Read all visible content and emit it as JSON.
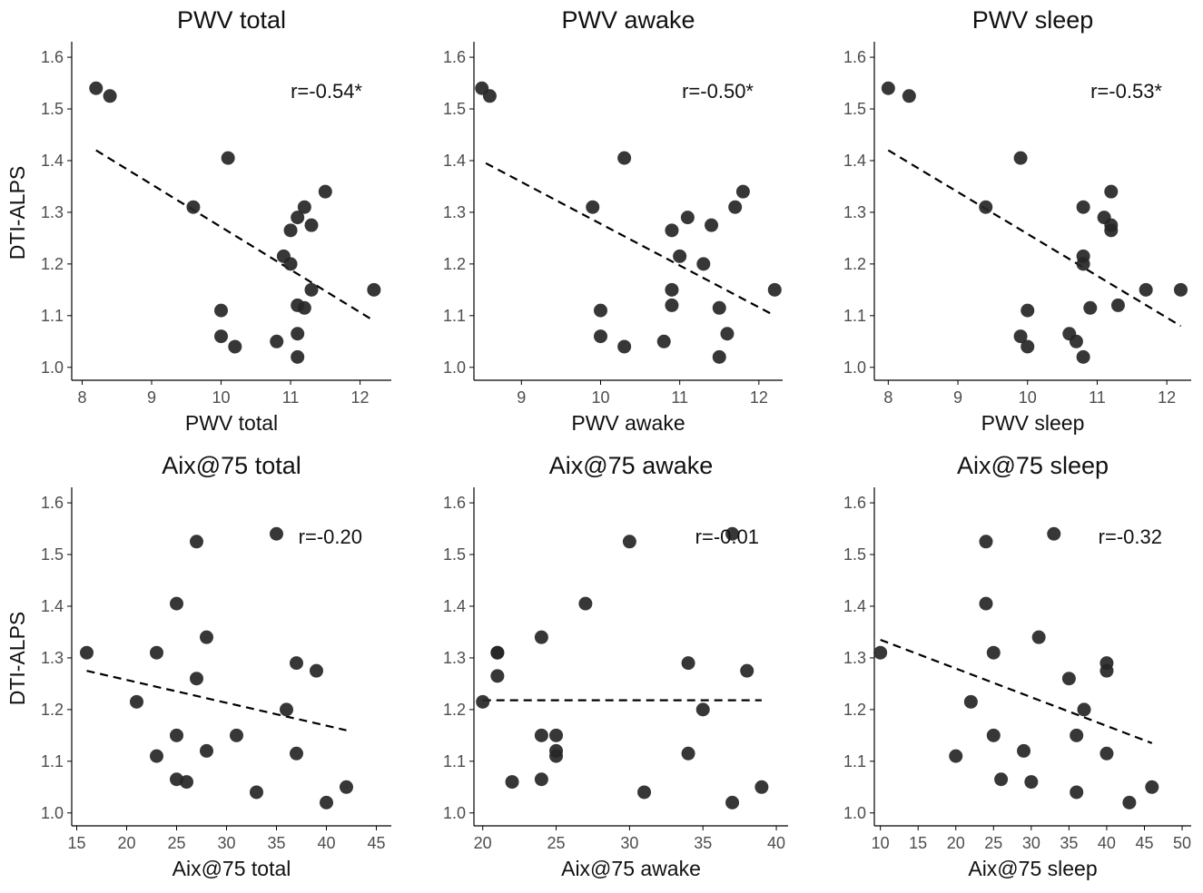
{
  "chart_data": [
    {
      "type": "scatter",
      "title": "PWV total",
      "xlabel": "PWV total",
      "ylabel": "DTI-ALPS",
      "xlim": [
        7.85,
        12.45
      ],
      "ylim": [
        0.975,
        1.63
      ],
      "xticks": [
        8,
        9,
        10,
        11,
        12
      ],
      "yticks": [
        1.0,
        1.1,
        1.2,
        1.3,
        1.4,
        1.5,
        1.6
      ],
      "ytick_labels": [
        "1.0",
        "1.1",
        "1.2",
        "1.3",
        "1.4",
        "1.5",
        "1.6"
      ],
      "annotation": "r=-0.54*",
      "fit_line": {
        "x": [
          8.2,
          12.2
        ],
        "y": [
          1.42,
          1.09
        ]
      },
      "points": [
        {
          "x": 8.2,
          "y": 1.54
        },
        {
          "x": 8.4,
          "y": 1.525
        },
        {
          "x": 10.1,
          "y": 1.405
        },
        {
          "x": 9.6,
          "y": 1.31
        },
        {
          "x": 11.5,
          "y": 1.34
        },
        {
          "x": 11.2,
          "y": 1.31
        },
        {
          "x": 11.1,
          "y": 1.29
        },
        {
          "x": 11.3,
          "y": 1.275
        },
        {
          "x": 11.0,
          "y": 1.265
        },
        {
          "x": 10.9,
          "y": 1.215
        },
        {
          "x": 11.0,
          "y": 1.2
        },
        {
          "x": 12.2,
          "y": 1.15
        },
        {
          "x": 11.3,
          "y": 1.15
        },
        {
          "x": 11.1,
          "y": 1.12
        },
        {
          "x": 11.2,
          "y": 1.115
        },
        {
          "x": 10.0,
          "y": 1.11
        },
        {
          "x": 10.0,
          "y": 1.06
        },
        {
          "x": 11.1,
          "y": 1.065
        },
        {
          "x": 10.8,
          "y": 1.05
        },
        {
          "x": 10.2,
          "y": 1.04
        },
        {
          "x": 11.1,
          "y": 1.02
        }
      ]
    },
    {
      "type": "scatter",
      "title": "PWV awake",
      "xlabel": "PWV awake",
      "ylabel": "",
      "xlim": [
        8.4,
        12.3
      ],
      "ylim": [
        0.975,
        1.63
      ],
      "xticks": [
        9,
        10,
        11,
        12
      ],
      "yticks": [
        1.0,
        1.1,
        1.2,
        1.3,
        1.4,
        1.5,
        1.6
      ],
      "ytick_labels": [
        "1.0",
        "1.1",
        "1.2",
        "1.3",
        "1.4",
        "1.5",
        "1.6"
      ],
      "annotation": "r=-0.50*",
      "fit_line": {
        "x": [
          8.55,
          12.2
        ],
        "y": [
          1.395,
          1.1
        ]
      },
      "points": [
        {
          "x": 8.5,
          "y": 1.54
        },
        {
          "x": 8.6,
          "y": 1.525
        },
        {
          "x": 10.3,
          "y": 1.405
        },
        {
          "x": 9.9,
          "y": 1.31
        },
        {
          "x": 11.8,
          "y": 1.34
        },
        {
          "x": 11.7,
          "y": 1.31
        },
        {
          "x": 11.1,
          "y": 1.29
        },
        {
          "x": 11.4,
          "y": 1.275
        },
        {
          "x": 10.9,
          "y": 1.265
        },
        {
          "x": 11.0,
          "y": 1.215
        },
        {
          "x": 11.3,
          "y": 1.2
        },
        {
          "x": 12.2,
          "y": 1.15
        },
        {
          "x": 10.9,
          "y": 1.15
        },
        {
          "x": 10.9,
          "y": 1.12
        },
        {
          "x": 11.5,
          "y": 1.115
        },
        {
          "x": 10.0,
          "y": 1.11
        },
        {
          "x": 10.0,
          "y": 1.06
        },
        {
          "x": 11.6,
          "y": 1.065
        },
        {
          "x": 10.8,
          "y": 1.05
        },
        {
          "x": 10.3,
          "y": 1.04
        },
        {
          "x": 11.5,
          "y": 1.02
        }
      ]
    },
    {
      "type": "scatter",
      "title": "PWV sleep",
      "xlabel": "PWV sleep",
      "ylabel": "",
      "xlim": [
        7.8,
        12.35
      ],
      "ylim": [
        0.975,
        1.63
      ],
      "xticks": [
        8,
        9,
        10,
        11,
        12
      ],
      "yticks": [
        1.0,
        1.1,
        1.2,
        1.3,
        1.4,
        1.5,
        1.6
      ],
      "ytick_labels": [
        "1.0",
        "1.1",
        "1.2",
        "1.3",
        "1.4",
        "1.5",
        "1.6"
      ],
      "annotation": "r=-0.53*",
      "fit_line": {
        "x": [
          8.0,
          12.2
        ],
        "y": [
          1.42,
          1.08
        ]
      },
      "points": [
        {
          "x": 8.0,
          "y": 1.54
        },
        {
          "x": 8.3,
          "y": 1.525
        },
        {
          "x": 9.9,
          "y": 1.405
        },
        {
          "x": 9.4,
          "y": 1.31
        },
        {
          "x": 11.2,
          "y": 1.34
        },
        {
          "x": 10.8,
          "y": 1.31
        },
        {
          "x": 11.1,
          "y": 1.29
        },
        {
          "x": 11.2,
          "y": 1.275
        },
        {
          "x": 11.2,
          "y": 1.265
        },
        {
          "x": 10.8,
          "y": 1.215
        },
        {
          "x": 10.8,
          "y": 1.2
        },
        {
          "x": 12.2,
          "y": 1.15
        },
        {
          "x": 11.7,
          "y": 1.15
        },
        {
          "x": 11.3,
          "y": 1.12
        },
        {
          "x": 10.9,
          "y": 1.115
        },
        {
          "x": 10.0,
          "y": 1.11
        },
        {
          "x": 9.9,
          "y": 1.06
        },
        {
          "x": 10.6,
          "y": 1.065
        },
        {
          "x": 10.7,
          "y": 1.05
        },
        {
          "x": 10.0,
          "y": 1.04
        },
        {
          "x": 10.8,
          "y": 1.02
        }
      ]
    },
    {
      "type": "scatter",
      "title": "Aix@75 total",
      "xlabel": "Aix@75 total",
      "ylabel": "DTI-ALPS",
      "xlim": [
        14.5,
        46.5
      ],
      "ylim": [
        0.975,
        1.63
      ],
      "xticks": [
        15,
        20,
        25,
        30,
        35,
        40,
        45
      ],
      "yticks": [
        1.0,
        1.1,
        1.2,
        1.3,
        1.4,
        1.5,
        1.6
      ],
      "ytick_labels": [
        "1.0",
        "1.1",
        "1.2",
        "1.3",
        "1.4",
        "1.5",
        "1.6"
      ],
      "annotation": "r=-0.20",
      "fit_line": {
        "x": [
          16,
          42
        ],
        "y": [
          1.275,
          1.16
        ]
      },
      "points": [
        {
          "x": 35,
          "y": 1.54
        },
        {
          "x": 27,
          "y": 1.525
        },
        {
          "x": 25,
          "y": 1.405
        },
        {
          "x": 16,
          "y": 1.31
        },
        {
          "x": 28,
          "y": 1.34
        },
        {
          "x": 23,
          "y": 1.31
        },
        {
          "x": 37,
          "y": 1.29
        },
        {
          "x": 39,
          "y": 1.275
        },
        {
          "x": 27,
          "y": 1.26
        },
        {
          "x": 21,
          "y": 1.215
        },
        {
          "x": 36,
          "y": 1.2
        },
        {
          "x": 25,
          "y": 1.15
        },
        {
          "x": 31,
          "y": 1.15
        },
        {
          "x": 28,
          "y": 1.12
        },
        {
          "x": 37,
          "y": 1.115
        },
        {
          "x": 23,
          "y": 1.11
        },
        {
          "x": 25,
          "y": 1.065
        },
        {
          "x": 26,
          "y": 1.06
        },
        {
          "x": 42,
          "y": 1.05
        },
        {
          "x": 33,
          "y": 1.04
        },
        {
          "x": 40,
          "y": 1.02
        }
      ]
    },
    {
      "type": "scatter",
      "title": "Aix@75 awake",
      "xlabel": "Aix@75 awake",
      "ylabel": "",
      "xlim": [
        19.4,
        40.8
      ],
      "ylim": [
        0.975,
        1.63
      ],
      "xticks": [
        20,
        25,
        30,
        35,
        40
      ],
      "yticks": [
        1.0,
        1.1,
        1.2,
        1.3,
        1.4,
        1.5,
        1.6
      ],
      "ytick_labels": [
        "1.0",
        "1.1",
        "1.2",
        "1.3",
        "1.4",
        "1.5",
        "1.6"
      ],
      "annotation": "r=-0.01",
      "fit_line": {
        "x": [
          20,
          39
        ],
        "y": [
          1.218,
          1.218
        ]
      },
      "points": [
        {
          "x": 37,
          "y": 1.54
        },
        {
          "x": 30,
          "y": 1.525
        },
        {
          "x": 27,
          "y": 1.405
        },
        {
          "x": 21,
          "y": 1.31
        },
        {
          "x": 24,
          "y": 1.34
        },
        {
          "x": 21,
          "y": 1.31
        },
        {
          "x": 34,
          "y": 1.29
        },
        {
          "x": 38,
          "y": 1.275
        },
        {
          "x": 21,
          "y": 1.265
        },
        {
          "x": 20,
          "y": 1.215
        },
        {
          "x": 35,
          "y": 1.2
        },
        {
          "x": 24,
          "y": 1.15
        },
        {
          "x": 25,
          "y": 1.15
        },
        {
          "x": 25,
          "y": 1.12
        },
        {
          "x": 34,
          "y": 1.115
        },
        {
          "x": 25,
          "y": 1.11
        },
        {
          "x": 24,
          "y": 1.065
        },
        {
          "x": 22,
          "y": 1.06
        },
        {
          "x": 39,
          "y": 1.05
        },
        {
          "x": 31,
          "y": 1.04
        },
        {
          "x": 37,
          "y": 1.02
        }
      ]
    },
    {
      "type": "scatter",
      "title": "Aix@75 sleep",
      "xlabel": "Aix@75 sleep",
      "ylabel": "",
      "xlim": [
        9.2,
        51.2
      ],
      "ylim": [
        0.975,
        1.63
      ],
      "xticks": [
        10,
        15,
        20,
        25,
        30,
        35,
        40,
        45,
        50
      ],
      "yticks": [
        1.0,
        1.1,
        1.2,
        1.3,
        1.4,
        1.5,
        1.6
      ],
      "ytick_labels": [
        "1.0",
        "1.1",
        "1.2",
        "1.3",
        "1.4",
        "1.5",
        "1.6"
      ],
      "annotation": "r=-0.32",
      "fit_line": {
        "x": [
          10,
          46
        ],
        "y": [
          1.335,
          1.135
        ]
      },
      "points": [
        {
          "x": 33,
          "y": 1.54
        },
        {
          "x": 24,
          "y": 1.525
        },
        {
          "x": 24,
          "y": 1.405
        },
        {
          "x": 10,
          "y": 1.31
        },
        {
          "x": 31,
          "y": 1.34
        },
        {
          "x": 25,
          "y": 1.31
        },
        {
          "x": 40,
          "y": 1.29
        },
        {
          "x": 40,
          "y": 1.275
        },
        {
          "x": 35,
          "y": 1.26
        },
        {
          "x": 22,
          "y": 1.215
        },
        {
          "x": 37,
          "y": 1.2
        },
        {
          "x": 25,
          "y": 1.15
        },
        {
          "x": 36,
          "y": 1.15
        },
        {
          "x": 29,
          "y": 1.12
        },
        {
          "x": 40,
          "y": 1.115
        },
        {
          "x": 20,
          "y": 1.11
        },
        {
          "x": 26,
          "y": 1.065
        },
        {
          "x": 30,
          "y": 1.06
        },
        {
          "x": 46,
          "y": 1.05
        },
        {
          "x": 36,
          "y": 1.04
        },
        {
          "x": 43,
          "y": 1.02
        }
      ]
    }
  ]
}
